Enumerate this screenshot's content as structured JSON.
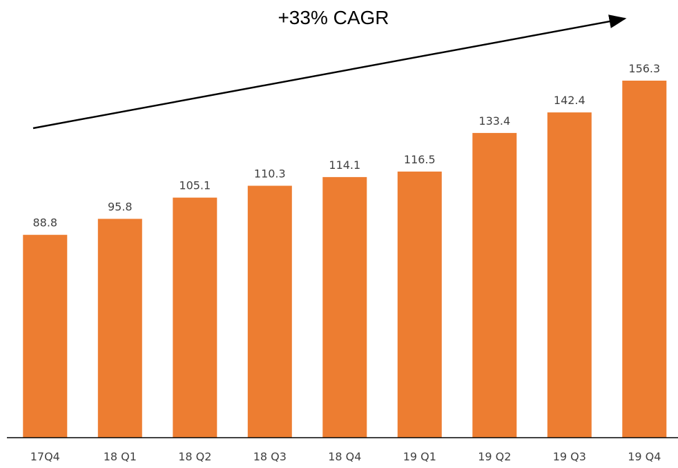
{
  "chart_data": {
    "type": "bar",
    "title": "",
    "xlabel": "",
    "ylabel": "",
    "categories": [
      "17Q4",
      "18 Q1",
      "18 Q2",
      "18 Q3",
      "18 Q4",
      "19 Q1",
      "19 Q2",
      "19 Q3",
      "19 Q4"
    ],
    "series": [
      {
        "values": [
          88.8,
          95.8,
          105.1,
          110.3,
          114.1,
          116.5,
          133.4,
          142.4,
          156.3
        ],
        "value_labels": [
          "88.8",
          "95.8",
          "105.1",
          "110.3",
          "114.1",
          "116.5",
          "133.4",
          "142.4",
          "156.3"
        ],
        "color": "#ED7D31"
      }
    ],
    "ylim": [
      0,
      156.3
    ],
    "grid": false,
    "legend": "none",
    "annotation": {
      "text": "+33% CAGR",
      "kind": "trend-arrow"
    },
    "colors": {
      "bar": "#ED7D31",
      "axis": "#000000",
      "label": "#404040"
    }
  }
}
